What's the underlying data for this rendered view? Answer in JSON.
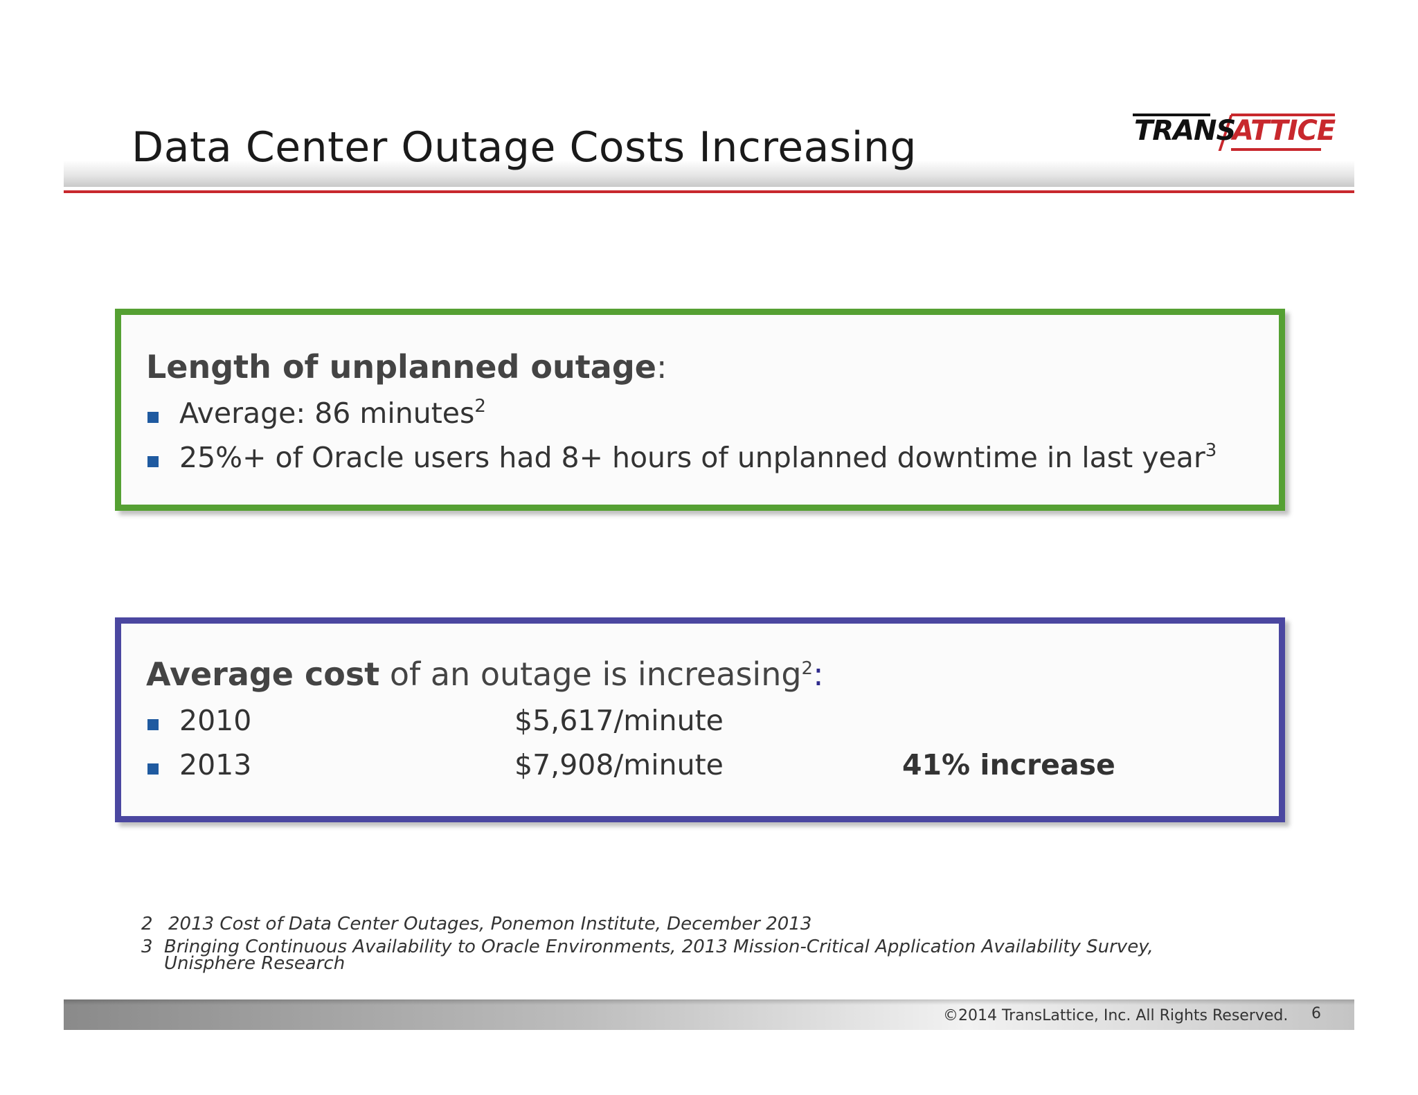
{
  "title": "Data Center Outage Costs Increasing",
  "logo": {
    "part1": "TRANS",
    "part2": "ATTICE"
  },
  "box1": {
    "heading_bold": "Length of unplanned outage",
    "heading_suffix": ":",
    "bullets": [
      {
        "text": "Average: 86 minutes",
        "sup": "2"
      },
      {
        "text": "25%+ of Oracle users had 8+ hours of unplanned downtime in last year",
        "sup": "3"
      }
    ]
  },
  "box2": {
    "heading_bold": "Average cost",
    "heading_rest": " of an outage is increasing",
    "heading_sup": "2",
    "heading_suffix": ":",
    "rows": [
      {
        "year": "2010",
        "cost": "$5,617/minute",
        "note": ""
      },
      {
        "year": "2013",
        "cost": "$7,908/minute",
        "note": "41% increase"
      }
    ]
  },
  "footnotes": [
    {
      "num": "2",
      "text": "2013 Cost of Data Center Outages, Ponemon Institute, December 2013"
    },
    {
      "num": "3",
      "text": "Bringing Continuous Availability to Oracle Environments, 2013 Mission-Critical Application Availability Survey,",
      "text2": "Unisphere Research"
    }
  ],
  "footer": {
    "copyright": "©2014 TransLattice, Inc. All Rights Reserved.",
    "page": "6"
  },
  "colors": {
    "accent_red": "#c8282d",
    "box1_border": "#55a033",
    "box2_border": "#4b47a0",
    "bullet": "#1f5aa0"
  }
}
